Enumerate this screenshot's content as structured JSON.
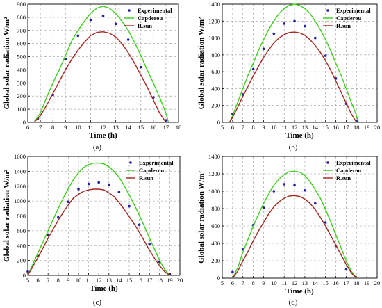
{
  "colors": {
    "experimental": "#1f1fa8",
    "capderou": "#3ccf1c",
    "rsun": "#a5231c",
    "grid": "#9a9a9a"
  },
  "chart_data": [
    {
      "panel": "(a)",
      "type": "line",
      "xlabel": "Time (h)",
      "ylabel": "Global solar radiation W/m²",
      "xlim": [
        6,
        18
      ],
      "ylim": [
        0,
        900
      ],
      "xticks": [
        6,
        7,
        8,
        9,
        10,
        11,
        12,
        13,
        14,
        15,
        16,
        17,
        18
      ],
      "yticks": [
        0,
        100,
        200,
        300,
        400,
        500,
        600,
        700,
        800,
        900
      ],
      "grid": true,
      "legend": "top-right",
      "series": [
        {
          "name": "Experimental",
          "kind": "points",
          "x": [
            6.8,
            8,
            9,
            10,
            11,
            12,
            13,
            14,
            15,
            16,
            17
          ],
          "y": [
            30,
            210,
            480,
            660,
            780,
            810,
            750,
            630,
            420,
            190,
            15
          ]
        },
        {
          "name": "Capderou",
          "kind": "curve",
          "x": [
            6.5,
            7,
            7.5,
            8,
            8.5,
            9,
            9.5,
            10,
            10.5,
            11,
            11.5,
            12,
            12.5,
            13,
            13.5,
            14,
            14.5,
            15,
            15.5,
            16,
            16.5,
            17,
            17.2
          ],
          "y": [
            0,
            70,
            190,
            300,
            400,
            510,
            620,
            700,
            770,
            830,
            870,
            885,
            870,
            830,
            770,
            700,
            610,
            510,
            400,
            300,
            190,
            70,
            0
          ]
        },
        {
          "name": "R.sun",
          "kind": "curve",
          "x": [
            6.5,
            7,
            7.5,
            8,
            8.5,
            9,
            9.5,
            10,
            10.5,
            11,
            11.5,
            12,
            12.5,
            13,
            13.5,
            14,
            14.5,
            15,
            15.5,
            16,
            16.5,
            17
          ],
          "y": [
            0,
            50,
            130,
            220,
            310,
            400,
            480,
            550,
            610,
            660,
            685,
            690,
            680,
            650,
            600,
            530,
            450,
            360,
            270,
            170,
            70,
            0
          ]
        }
      ]
    },
    {
      "panel": "(b)",
      "type": "line",
      "xlabel": "Time (h)",
      "ylabel": "Global solar radiation W/m²",
      "xlim": [
        5,
        20
      ],
      "ylim": [
        0,
        1400
      ],
      "xticks": [
        5,
        6,
        7,
        8,
        9,
        10,
        11,
        12,
        13,
        14,
        15,
        16,
        17,
        18,
        19,
        20
      ],
      "yticks": [
        0,
        200,
        400,
        600,
        800,
        1000,
        1200,
        1400
      ],
      "grid": true,
      "legend": "top-right",
      "series": [
        {
          "name": "Experimental",
          "kind": "points",
          "x": [
            6,
            7,
            8,
            9,
            10,
            11,
            12,
            13,
            14,
            15,
            16,
            17,
            18
          ],
          "y": [
            100,
            330,
            630,
            870,
            1050,
            1170,
            1200,
            1140,
            1000,
            790,
            520,
            220,
            20
          ]
        },
        {
          "name": "Capderou",
          "kind": "curve",
          "x": [
            5.7,
            6,
            6.5,
            7,
            7.5,
            8,
            8.5,
            9,
            9.5,
            10,
            10.5,
            11,
            11.5,
            12,
            12.5,
            13,
            13.5,
            14,
            14.5,
            15,
            15.5,
            16,
            16.5,
            17,
            17.5,
            18,
            18.2
          ],
          "y": [
            0,
            80,
            240,
            400,
            560,
            700,
            850,
            980,
            1100,
            1200,
            1290,
            1350,
            1385,
            1400,
            1385,
            1350,
            1290,
            1200,
            1100,
            980,
            850,
            700,
            560,
            400,
            240,
            80,
            0
          ]
        },
        {
          "name": "R.sun",
          "kind": "curve",
          "x": [
            5.7,
            6,
            6.5,
            7,
            7.5,
            8,
            8.5,
            9,
            9.5,
            10,
            10.5,
            11,
            11.5,
            12,
            12.5,
            13,
            13.5,
            14,
            14.5,
            15,
            15.5,
            16,
            16.5,
            17,
            17.5,
            18
          ],
          "y": [
            0,
            60,
            180,
            310,
            430,
            550,
            660,
            770,
            860,
            940,
            1000,
            1040,
            1065,
            1070,
            1060,
            1030,
            980,
            910,
            830,
            730,
            620,
            490,
            360,
            230,
            100,
            0
          ]
        }
      ]
    },
    {
      "panel": "(c)",
      "type": "line",
      "xlabel": "Time (h)",
      "ylabel": "Global solar radiation W/m²",
      "xlim": [
        5,
        20
      ],
      "ylim": [
        0,
        1600
      ],
      "xticks": [
        5,
        6,
        7,
        8,
        9,
        10,
        11,
        12,
        13,
        14,
        15,
        16,
        17,
        18,
        19,
        20
      ],
      "yticks": [
        0,
        200,
        400,
        600,
        800,
        1000,
        1200,
        1400,
        1600
      ],
      "grid": true,
      "legend": "top-right",
      "series": [
        {
          "name": "Experimental",
          "kind": "points",
          "x": [
            5,
            6,
            7,
            8,
            9,
            10,
            11,
            12,
            13,
            14,
            15,
            16,
            17,
            18,
            19
          ],
          "y": [
            50,
            260,
            540,
            780,
            990,
            1160,
            1230,
            1250,
            1220,
            1120,
            930,
            680,
            420,
            180,
            20
          ]
        },
        {
          "name": "Capderou",
          "kind": "curve",
          "x": [
            5,
            5.5,
            6,
            6.5,
            7,
            7.5,
            8,
            8.5,
            9,
            9.5,
            10,
            10.5,
            11,
            11.5,
            12,
            12.5,
            13,
            13.5,
            14,
            14.5,
            15,
            15.5,
            16,
            16.5,
            17,
            17.5,
            18,
            18.5,
            19
          ],
          "y": [
            0,
            150,
            300,
            450,
            600,
            750,
            900,
            1040,
            1170,
            1290,
            1380,
            1450,
            1490,
            1510,
            1510,
            1500,
            1460,
            1400,
            1320,
            1210,
            1080,
            950,
            810,
            660,
            500,
            350,
            200,
            80,
            0
          ]
        },
        {
          "name": "R.sun",
          "kind": "curve",
          "x": [
            5,
            5.5,
            6,
            6.5,
            7,
            7.5,
            8,
            8.5,
            9,
            9.5,
            10,
            10.5,
            11,
            11.5,
            12,
            12.5,
            13,
            13.5,
            14,
            14.5,
            15,
            15.5,
            16,
            16.5,
            17,
            17.5,
            18,
            18.5,
            19
          ],
          "y": [
            0,
            120,
            240,
            370,
            500,
            620,
            740,
            850,
            950,
            1040,
            1090,
            1130,
            1150,
            1160,
            1160,
            1150,
            1110,
            1060,
            980,
            890,
            790,
            690,
            580,
            460,
            340,
            230,
            130,
            50,
            0
          ]
        }
      ]
    },
    {
      "panel": "(d)",
      "type": "line",
      "xlabel": "Time (h)",
      "ylabel": "Global solar radiation W/m²",
      "xlim": [
        5,
        20
      ],
      "ylim": [
        0,
        1400
      ],
      "xticks": [
        5,
        6,
        7,
        8,
        9,
        10,
        11,
        12,
        13,
        14,
        15,
        16,
        17,
        18,
        19,
        20
      ],
      "yticks": [
        0,
        200,
        400,
        600,
        800,
        1000,
        1200,
        1400
      ],
      "grid": true,
      "legend": "top-right",
      "series": [
        {
          "name": "Experimental",
          "kind": "points",
          "x": [
            6,
            7,
            8,
            9,
            10,
            11,
            12,
            13,
            14,
            15,
            16,
            17
          ],
          "y": [
            70,
            330,
            610,
            810,
            1000,
            1080,
            1070,
            1010,
            860,
            640,
            370,
            100
          ]
        },
        {
          "name": "Capderou",
          "kind": "curve",
          "x": [
            6,
            6.5,
            7,
            7.5,
            8,
            8.5,
            9,
            9.5,
            10,
            10.5,
            11,
            11.5,
            12,
            12.5,
            13,
            13.5,
            14,
            14.5,
            15,
            15.5,
            16,
            16.5,
            17,
            17.5,
            18
          ],
          "y": [
            0,
            120,
            300,
            450,
            600,
            730,
            860,
            970,
            1070,
            1140,
            1190,
            1225,
            1230,
            1220,
            1180,
            1110,
            1020,
            920,
            790,
            650,
            500,
            350,
            200,
            80,
            0
          ]
        },
        {
          "name": "R.sun",
          "kind": "curve",
          "x": [
            6,
            6.5,
            7,
            7.5,
            8,
            8.5,
            9,
            9.5,
            10,
            10.5,
            11,
            11.5,
            12,
            12.5,
            13,
            13.5,
            14,
            14.5,
            15,
            15.5,
            16,
            16.5,
            17,
            17.5,
            18
          ],
          "y": [
            0,
            80,
            200,
            310,
            430,
            540,
            640,
            740,
            820,
            880,
            920,
            945,
            950,
            940,
            910,
            860,
            790,
            700,
            600,
            490,
            380,
            270,
            160,
            60,
            0
          ]
        }
      ]
    }
  ]
}
